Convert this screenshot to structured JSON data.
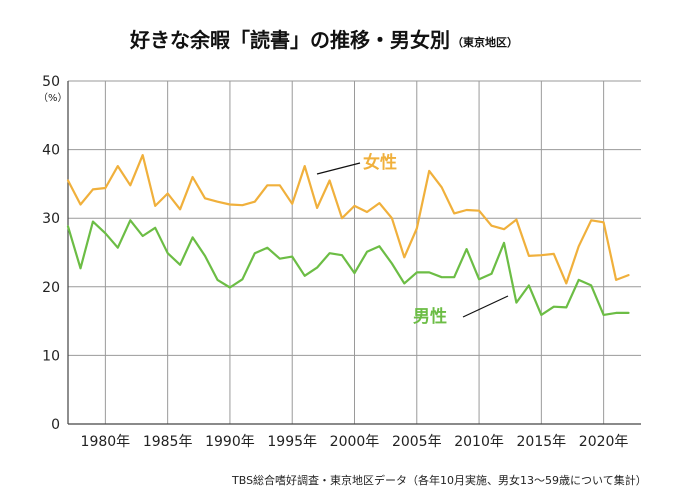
{
  "title": "好きな余暇「読書」の推移・男女別",
  "subtitle": "（東京地区）",
  "unit": "（%）",
  "source": "TBS総合嗜好調査・東京地区データ（各年10月実施、男女13〜59歳について集計）",
  "colors": {
    "female": "#f0b03c",
    "male": "#6cbd45",
    "grid": "#9a9a9a",
    "axis": "#444444"
  },
  "chart_data": {
    "type": "line",
    "title": "好きな余暇「読書」の推移・男女別",
    "subtitle": "（東京地区）",
    "xlabel": "",
    "ylabel": "（%）",
    "ylim": [
      0,
      50
    ],
    "xlim": [
      1977,
      2023
    ],
    "grid": true,
    "x": [
      1977,
      1978,
      1979,
      1980,
      1981,
      1982,
      1983,
      1984,
      1985,
      1986,
      1987,
      1988,
      1989,
      1990,
      1991,
      1992,
      1993,
      1994,
      1995,
      1996,
      1997,
      1998,
      1999,
      2000,
      2001,
      2002,
      2003,
      2004,
      2005,
      2006,
      2007,
      2008,
      2009,
      2010,
      2011,
      2012,
      2013,
      2014,
      2015,
      2016,
      2017,
      2018,
      2019,
      2020,
      2021,
      2022,
      2023
    ],
    "x_ticks": [
      1980,
      1985,
      1990,
      1995,
      2000,
      2005,
      2010,
      2015,
      2020
    ],
    "x_tick_labels": [
      "1980年",
      "1985年",
      "1990年",
      "1995年",
      "2000年",
      "2005年",
      "2010年",
      "2015年",
      "2020年"
    ],
    "y_ticks": [
      0,
      10,
      20,
      30,
      40,
      50
    ],
    "y_tick_labels": [
      "0",
      "10",
      "20",
      "30",
      "40",
      "50"
    ],
    "series": [
      {
        "key": "female",
        "name": "女性",
        "values": [
          35.5,
          32.0,
          34.2,
          34.4,
          37.6,
          34.8,
          39.2,
          31.8,
          33.6,
          31.3,
          36.0,
          32.9,
          32.4,
          32.0,
          31.9,
          32.4,
          34.8,
          34.8,
          32.1,
          37.6,
          31.5,
          35.5,
          30.0,
          31.8,
          30.9,
          32.2,
          30.0,
          24.3,
          28.5,
          36.9,
          34.5,
          30.7,
          31.2,
          31.1,
          28.9,
          28.4,
          29.8,
          24.5,
          24.6,
          24.8,
          20.5,
          25.9,
          29.7,
          29.4,
          21.0,
          21.7,
          null
        ]
      },
      {
        "key": "male",
        "name": "男性",
        "values": [
          28.8,
          22.7,
          29.5,
          27.8,
          25.7,
          29.7,
          27.4,
          28.6,
          24.9,
          23.2,
          27.2,
          24.5,
          21.0,
          19.9,
          21.1,
          24.9,
          25.7,
          24.1,
          24.4,
          21.6,
          22.8,
          24.9,
          24.6,
          22.0,
          25.1,
          25.9,
          23.4,
          20.5,
          22.1,
          22.1,
          21.4,
          21.4,
          25.5,
          21.1,
          21.9,
          26.4,
          17.7,
          20.2,
          15.9,
          17.1,
          17.0,
          21.0,
          20.2,
          15.9,
          16.2,
          16.2,
          null
        ]
      }
    ]
  }
}
